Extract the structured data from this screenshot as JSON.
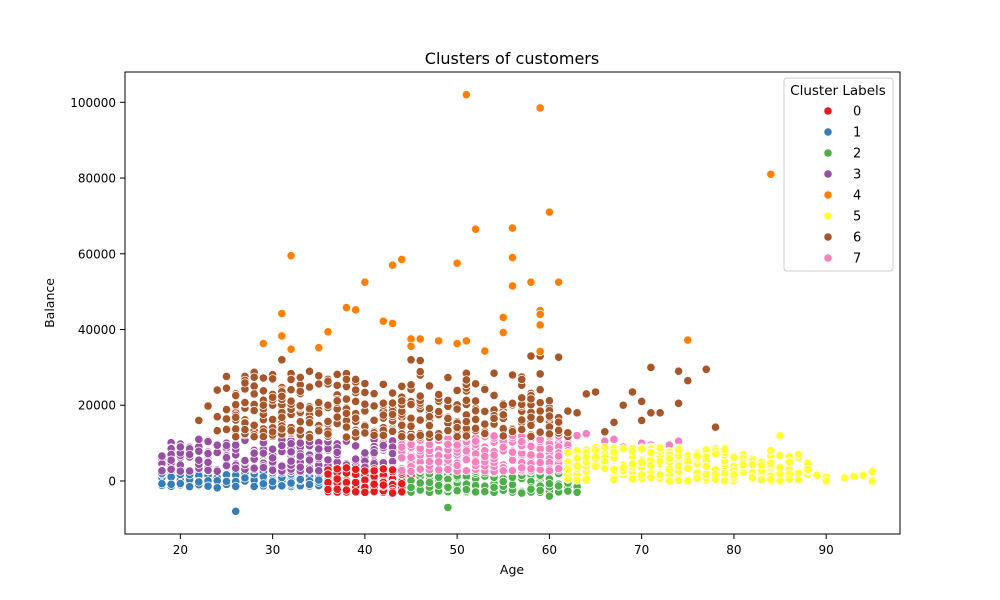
{
  "chart_data": {
    "type": "scatter",
    "title": "Clusters of customers",
    "xlabel": "Age",
    "ylabel": "Balance",
    "xlim": [
      14,
      98
    ],
    "ylim": [
      -14000,
      108000
    ],
    "xticks": [
      20,
      30,
      40,
      50,
      60,
      70,
      80,
      90
    ],
    "yticks": [
      0,
      20000,
      40000,
      60000,
      80000,
      100000
    ],
    "grid": false,
    "legend": {
      "title": "Cluster Labels",
      "placement": "top-right"
    },
    "series": [
      {
        "name": "0",
        "color": "#e41a1c",
        "bands": [
          [
            36,
            45,
            -3000,
            3500,
            180
          ]
        ],
        "points": [
          [
            40,
            -3000
          ],
          [
            43,
            -3200
          ],
          [
            37,
            3200
          ],
          [
            45,
            2800
          ]
        ]
      },
      {
        "name": "1",
        "color": "#377eb8",
        "bands": [
          [
            18,
            36,
            -1500,
            2500,
            240
          ]
        ],
        "points": [
          [
            26,
            -8000
          ],
          [
            24,
            -1800
          ],
          [
            18,
            2000
          ],
          [
            33,
            2600
          ],
          [
            35,
            2400
          ]
        ]
      },
      {
        "name": "2",
        "color": "#4daf4a",
        "bands": [
          [
            45,
            63,
            -3000,
            3000,
            220
          ]
        ],
        "points": [
          [
            49,
            -7000
          ],
          [
            60,
            -4000
          ],
          [
            57,
            -3200
          ],
          [
            53,
            -2800
          ],
          [
            63,
            1800
          ]
        ]
      },
      {
        "name": "3",
        "color": "#984ea3",
        "bands": [
          [
            18,
            44,
            2500,
            11000,
            260
          ]
        ],
        "points": [
          [
            19,
            5500
          ],
          [
            20,
            9000
          ],
          [
            22,
            11000
          ],
          [
            21,
            7000
          ]
        ]
      },
      {
        "name": "4",
        "color": "#ff7f00",
        "bands": [],
        "points": [
          [
            51,
            102000
          ],
          [
            59,
            98500
          ],
          [
            84,
            81000
          ],
          [
            60,
            71000
          ],
          [
            52,
            66500
          ],
          [
            56,
            66800
          ],
          [
            32,
            59500
          ],
          [
            44,
            58500
          ],
          [
            43,
            57000
          ],
          [
            50,
            57500
          ],
          [
            56,
            59000
          ],
          [
            61,
            52500
          ],
          [
            40,
            52500
          ],
          [
            58,
            52500
          ],
          [
            56,
            51500
          ],
          [
            38,
            45800
          ],
          [
            39,
            45200
          ],
          [
            59,
            45000
          ],
          [
            31,
            44200
          ],
          [
            55,
            43200
          ],
          [
            59,
            44000
          ],
          [
            42,
            42200
          ],
          [
            43,
            41600
          ],
          [
            59,
            41200
          ],
          [
            36,
            39400
          ],
          [
            55,
            39200
          ],
          [
            31,
            38300
          ],
          [
            45,
            37500
          ],
          [
            46,
            37500
          ],
          [
            48,
            37000
          ],
          [
            51,
            37000
          ],
          [
            75,
            37200
          ],
          [
            29,
            36300
          ],
          [
            50,
            36300
          ],
          [
            32,
            34800
          ],
          [
            35,
            35200
          ],
          [
            45,
            35600
          ],
          [
            53,
            34300
          ],
          [
            59,
            34200
          ]
        ]
      },
      {
        "name": "5",
        "color": "#ffff33",
        "bands": [
          [
            62,
            80,
            0,
            9000,
            260
          ],
          [
            80,
            88,
            0,
            7000,
            70
          ]
        ],
        "points": [
          [
            85,
            12000
          ],
          [
            84,
            8000
          ],
          [
            87,
            7000
          ],
          [
            86,
            5000
          ],
          [
            88,
            3000
          ],
          [
            89,
            1500
          ],
          [
            90,
            1000
          ],
          [
            90,
            0
          ],
          [
            92,
            800
          ],
          [
            93,
            1200
          ],
          [
            94,
            1500
          ],
          [
            95,
            2500
          ],
          [
            95,
            0
          ]
        ]
      },
      {
        "name": "6",
        "color": "#a65628",
        "bands": [
          [
            24,
            62,
            11500,
            20500,
            320
          ],
          [
            25,
            60,
            20000,
            29000,
            130
          ]
        ],
        "points": [
          [
            23,
            19800
          ],
          [
            24,
            24000
          ],
          [
            22,
            16000
          ],
          [
            31,
            32000
          ],
          [
            45,
            32000
          ],
          [
            46,
            31800
          ],
          [
            58,
            33000
          ],
          [
            59,
            33000
          ],
          [
            61,
            32700
          ],
          [
            71,
            30000
          ],
          [
            77,
            29500
          ],
          [
            74,
            29000
          ],
          [
            75,
            26500
          ],
          [
            74,
            20500
          ],
          [
            78,
            14200
          ],
          [
            69,
            23500
          ],
          [
            70,
            21000
          ],
          [
            71,
            18000
          ],
          [
            64,
            23000
          ],
          [
            63,
            18000
          ],
          [
            65,
            23500
          ],
          [
            66,
            13000
          ],
          [
            67,
            15500
          ],
          [
            68,
            20000
          ],
          [
            72,
            18000
          ],
          [
            70,
            16000
          ]
        ]
      },
      {
        "name": "7",
        "color": "#f781bf",
        "bands": [
          [
            44,
            62,
            2500,
            12000,
            280
          ]
        ],
        "points": [
          [
            63,
            12000
          ],
          [
            64,
            12500
          ],
          [
            66,
            10500
          ],
          [
            67,
            11000
          ],
          [
            68,
            9000
          ],
          [
            70,
            10000
          ],
          [
            71,
            9500
          ],
          [
            72,
            8800
          ],
          [
            73,
            9500
          ],
          [
            74,
            10500
          ],
          [
            62,
            8000
          ],
          [
            65,
            7500
          ]
        ]
      }
    ]
  }
}
